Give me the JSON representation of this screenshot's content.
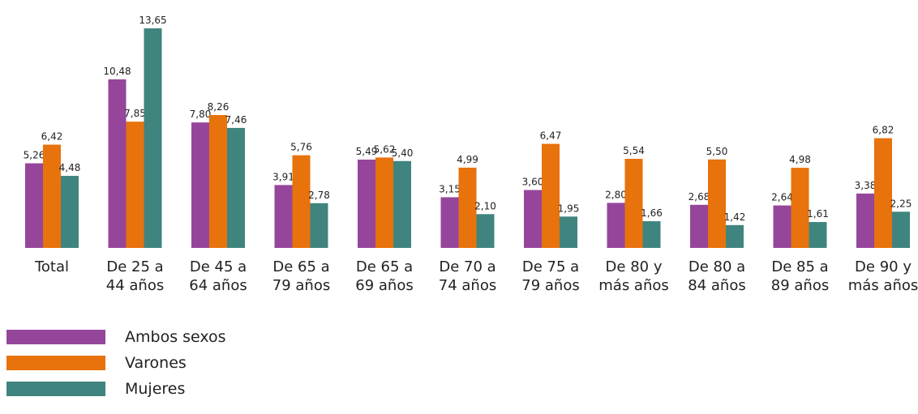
{
  "chart_data": {
    "type": "bar",
    "categories": [
      [
        "Total"
      ],
      [
        "De 25 a",
        "44 años"
      ],
      [
        "De 45 a",
        "64 años"
      ],
      [
        "De 65 a",
        "79 años"
      ],
      [
        "De 65 a",
        "69 años"
      ],
      [
        "De 70 a",
        "74 años"
      ],
      [
        "De 75 a",
        "79 años"
      ],
      [
        "De 80 y",
        "más años"
      ],
      [
        "De 80 a",
        "84 años"
      ],
      [
        "De 85 a",
        "89 años"
      ],
      [
        "De 90 y",
        "más años"
      ]
    ],
    "series": [
      {
        "name": "Ambos sexos",
        "color": "#95469a",
        "values": [
          5.26,
          10.48,
          7.8,
          3.91,
          5.49,
          3.15,
          3.6,
          2.8,
          2.68,
          2.64,
          3.38
        ],
        "labels": [
          "5,26",
          "10,48",
          "7,80",
          "3,91",
          "5,49",
          "3,15",
          "3,60",
          "2,80",
          "2,68",
          "2,64",
          "3,38"
        ]
      },
      {
        "name": "Varones",
        "color": "#e8720c",
        "values": [
          6.42,
          7.85,
          8.26,
          5.76,
          5.62,
          4.99,
          6.47,
          5.54,
          5.5,
          4.98,
          6.82
        ],
        "labels": [
          "6,42",
          "7,85",
          "8,26",
          "5,76",
          "5,62",
          "4,99",
          "6,47",
          "5,54",
          "5,50",
          "4,98",
          "6,82"
        ]
      },
      {
        "name": "Mujeres",
        "color": "#3f847f",
        "values": [
          4.48,
          13.65,
          7.46,
          2.78,
          5.4,
          2.1,
          1.95,
          1.66,
          1.42,
          1.61,
          2.25
        ],
        "labels": [
          "4,48",
          "13,65",
          "7,46",
          "2,78",
          "5,40",
          "2,10",
          "1,95",
          "1,66",
          "1,42",
          "1,61",
          "2,25"
        ]
      }
    ],
    "ylim": [
      0,
      13.65
    ],
    "grid": false,
    "legend_position": "bottom-left"
  }
}
